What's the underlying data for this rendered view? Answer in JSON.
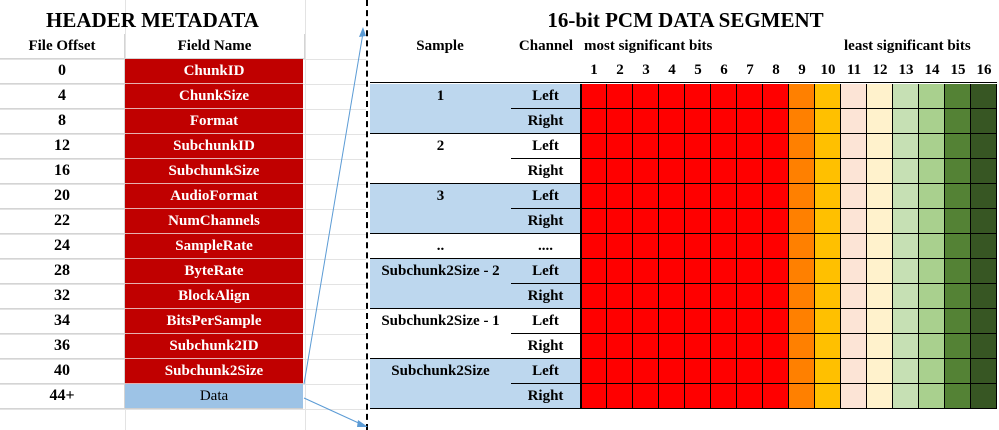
{
  "header": {
    "title": "HEADER METADATA",
    "col_offset": "File Offset",
    "col_field": "Field Name",
    "rows": [
      {
        "offset": "0",
        "field": "ChunkID"
      },
      {
        "offset": "4",
        "field": "ChunkSize"
      },
      {
        "offset": "8",
        "field": "Format"
      },
      {
        "offset": "12",
        "field": "SubchunkID"
      },
      {
        "offset": "16",
        "field": "SubchunkSize"
      },
      {
        "offset": "20",
        "field": "AudioFormat"
      },
      {
        "offset": "22",
        "field": "NumChannels"
      },
      {
        "offset": "24",
        "field": "SampleRate"
      },
      {
        "offset": "28",
        "field": "ByteRate"
      },
      {
        "offset": "32",
        "field": "BlockAlign"
      },
      {
        "offset": "34",
        "field": "BitsPerSample"
      },
      {
        "offset": "36",
        "field": "Subchunk2ID"
      },
      {
        "offset": "40",
        "field": "Subchunk2Size"
      },
      {
        "offset": "44+",
        "field": "Data"
      }
    ]
  },
  "pcm": {
    "title": "16-bit PCM DATA SEGMENT",
    "col_sample": "Sample",
    "col_channel": "Channel",
    "msb_label": "most significant bits",
    "lsb_label": "least significant bits",
    "bits": [
      "1",
      "2",
      "3",
      "4",
      "5",
      "6",
      "7",
      "8",
      "9",
      "10",
      "11",
      "12",
      "13",
      "14",
      "15",
      "16"
    ],
    "bit_colors": [
      "#ff0000",
      "#ff0000",
      "#ff0000",
      "#ff0000",
      "#ff0000",
      "#ff0000",
      "#ff0000",
      "#ff0000",
      "#ff8000",
      "#ffc000",
      "#fce4d6",
      "#fff2cc",
      "#c6e0b4",
      "#a9d08e",
      "#548235",
      "#375623"
    ],
    "samples": [
      {
        "label": "1",
        "channels": [
          "Left",
          "Right"
        ],
        "shaded": true
      },
      {
        "label": "2",
        "channels": [
          "Left",
          "Right"
        ],
        "shaded": false
      },
      {
        "label": "3",
        "channels": [
          "Left",
          "Right"
        ],
        "shaded": true
      },
      {
        "label": "..",
        "channels": [
          "...."
        ],
        "shaded": false
      },
      {
        "label": "Subchunk2Size - 2",
        "channels": [
          "Left",
          "Right"
        ],
        "shaded": true
      },
      {
        "label": "Subchunk2Size - 1",
        "channels": [
          "Left",
          "Right"
        ],
        "shaded": false
      },
      {
        "label": "Subchunk2Size",
        "channels": [
          "Left",
          "Right"
        ],
        "shaded": true
      }
    ]
  }
}
